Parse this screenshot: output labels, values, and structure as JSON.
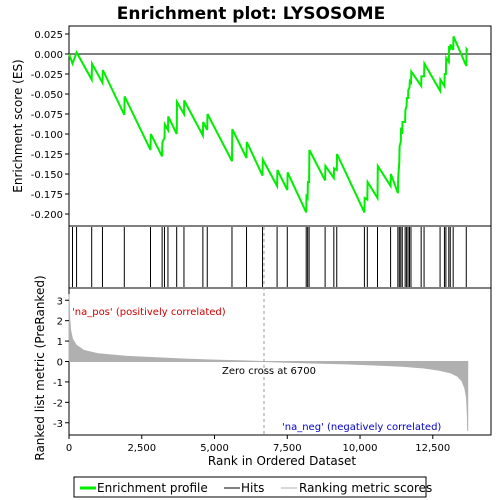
{
  "chart_data": {
    "type": "line",
    "title": "Enrichment plot: LYSOSOME",
    "xlabel": "Rank in Ordered Dataset",
    "ylabel_top": "Enrichment score (ES)",
    "ylabel_bottom": "Ranked list metric (PreRanked)",
    "xlim": [
      0,
      14500
    ],
    "ylim_top": [
      -0.215,
      0.035
    ],
    "ylim_bottom": [
      -3.6,
      3.6
    ],
    "x_ticks": [
      0,
      2500,
      5000,
      7500,
      10000,
      12500
    ],
    "x_tick_labels": [
      "0",
      "2,500",
      "5,000",
      "7,500",
      "10,000",
      "12,500"
    ],
    "y_ticks_top": [
      0.025,
      0.0,
      -0.025,
      -0.05,
      -0.075,
      -0.1,
      -0.125,
      -0.15,
      -0.175,
      -0.2
    ],
    "y_tick_labels_top": [
      "0.025",
      "0.000",
      "-0.025",
      "-0.050",
      "-0.075",
      "-0.100",
      "-0.125",
      "-0.150",
      "-0.175",
      "-0.200"
    ],
    "y_ticks_bottom": [
      3,
      2,
      1,
      0,
      -1,
      -2,
      -3
    ],
    "y_tick_labels_bottom": [
      "3",
      "2",
      "1",
      "0",
      "-1",
      "-2",
      "-3"
    ],
    "annotations": {
      "pos_label": "'na_pos' (positively correlated)",
      "neg_label": "'na_neg' (negatively correlated)",
      "zero_cross": "Zero cross at 6700"
    },
    "zero_cross_rank": 6700,
    "n_genes": 13700,
    "hits": [
      120,
      260,
      780,
      1150,
      1900,
      2800,
      3200,
      3280,
      3400,
      3700,
      3950,
      4600,
      4750,
      5600,
      6100,
      6650,
      7150,
      7500,
      8150,
      8200,
      8250,
      8800,
      9100,
      9200,
      10150,
      10250,
      10600,
      11050,
      11300,
      11350,
      11400,
      11450,
      11550,
      11600,
      11650,
      11700,
      11750,
      12100,
      12200,
      12750,
      12900,
      12950,
      13050,
      13100,
      13200,
      13650
    ],
    "es_curve": [
      [
        0,
        0.0
      ],
      [
        120,
        -0.012
      ],
      [
        260,
        0.002
      ],
      [
        780,
        -0.032
      ],
      [
        790,
        -0.012
      ],
      [
        1150,
        -0.036
      ],
      [
        1160,
        -0.02
      ],
      [
        1900,
        -0.076
      ],
      [
        1910,
        -0.053
      ],
      [
        2800,
        -0.12
      ],
      [
        2810,
        -0.1
      ],
      [
        3200,
        -0.128
      ],
      [
        3210,
        -0.11
      ],
      [
        3280,
        -0.105
      ],
      [
        3290,
        -0.088
      ],
      [
        3400,
        -0.095
      ],
      [
        3410,
        -0.078
      ],
      [
        3700,
        -0.1
      ],
      [
        3710,
        -0.06
      ],
      [
        3950,
        -0.075
      ],
      [
        3960,
        -0.058
      ],
      [
        4600,
        -0.102
      ],
      [
        4610,
        -0.085
      ],
      [
        4750,
        -0.095
      ],
      [
        4760,
        -0.075
      ],
      [
        5600,
        -0.134
      ],
      [
        5610,
        -0.094
      ],
      [
        6100,
        -0.13
      ],
      [
        6110,
        -0.11
      ],
      [
        6650,
        -0.152
      ],
      [
        6660,
        -0.132
      ],
      [
        7150,
        -0.165
      ],
      [
        7160,
        -0.145
      ],
      [
        7500,
        -0.17
      ],
      [
        7510,
        -0.148
      ],
      [
        8150,
        -0.198
      ],
      [
        8160,
        -0.178
      ],
      [
        8200,
        -0.18
      ],
      [
        8210,
        -0.16
      ],
      [
        8250,
        -0.16
      ],
      [
        8260,
        -0.12
      ],
      [
        8800,
        -0.158
      ],
      [
        8810,
        -0.14
      ],
      [
        9100,
        -0.155
      ],
      [
        9110,
        -0.143
      ],
      [
        9200,
        -0.145
      ],
      [
        9210,
        -0.125
      ],
      [
        10150,
        -0.198
      ],
      [
        10160,
        -0.18
      ],
      [
        10250,
        -0.182
      ],
      [
        10260,
        -0.16
      ],
      [
        10600,
        -0.18
      ],
      [
        10610,
        -0.14
      ],
      [
        11050,
        -0.165
      ],
      [
        11060,
        -0.15
      ],
      [
        11300,
        -0.174
      ],
      [
        11310,
        -0.155
      ],
      [
        11350,
        -0.135
      ],
      [
        11360,
        -0.115
      ],
      [
        11400,
        -0.11
      ],
      [
        11410,
        -0.092
      ],
      [
        11450,
        -0.1
      ],
      [
        11460,
        -0.085
      ],
      [
        11550,
        -0.085
      ],
      [
        11560,
        -0.07
      ],
      [
        11600,
        -0.065
      ],
      [
        11610,
        -0.055
      ],
      [
        11650,
        -0.055
      ],
      [
        11660,
        -0.045
      ],
      [
        11700,
        -0.042
      ],
      [
        11710,
        -0.035
      ],
      [
        11750,
        -0.038
      ],
      [
        11760,
        -0.022
      ],
      [
        12100,
        -0.04
      ],
      [
        12110,
        -0.028
      ],
      [
        12200,
        -0.028
      ],
      [
        12210,
        -0.012
      ],
      [
        12750,
        -0.046
      ],
      [
        12760,
        -0.032
      ],
      [
        12900,
        -0.04
      ],
      [
        12910,
        -0.025
      ],
      [
        12950,
        -0.025
      ],
      [
        12960,
        -0.005
      ],
      [
        13050,
        -0.01
      ],
      [
        13060,
        0.01
      ],
      [
        13100,
        0.005
      ],
      [
        13110,
        0.012
      ],
      [
        13200,
        0.005
      ],
      [
        13210,
        0.022
      ],
      [
        13650,
        -0.015
      ],
      [
        13660,
        0.006
      ],
      [
        13700,
        0.004
      ]
    ],
    "metric_curve": [
      [
        0,
        3.3
      ],
      [
        25,
        2.1
      ],
      [
        60,
        1.5
      ],
      [
        120,
        1.1
      ],
      [
        250,
        0.8
      ],
      [
        500,
        0.55
      ],
      [
        1000,
        0.38
      ],
      [
        2000,
        0.25
      ],
      [
        3000,
        0.18
      ],
      [
        4000,
        0.12
      ],
      [
        5000,
        0.07
      ],
      [
        6000,
        0.03
      ],
      [
        6700,
        0.0
      ],
      [
        7500,
        -0.04
      ],
      [
        8500,
        -0.08
      ],
      [
        9500,
        -0.12
      ],
      [
        10500,
        -0.17
      ],
      [
        11500,
        -0.24
      ],
      [
        12200,
        -0.32
      ],
      [
        12700,
        -0.42
      ],
      [
        13100,
        -0.55
      ],
      [
        13350,
        -0.72
      ],
      [
        13500,
        -0.95
      ],
      [
        13600,
        -1.3
      ],
      [
        13660,
        -1.8
      ],
      [
        13690,
        -2.6
      ],
      [
        13700,
        -3.4
      ]
    ],
    "colors": {
      "es_line": "#00ee00",
      "hit": "#000000",
      "metric_fill": "#b0b0b0",
      "zero_line": "#999999",
      "pos_bar": "#ff0000",
      "neg_bar": "#0000ff"
    }
  },
  "legend": {
    "items": [
      {
        "label": "Enrichment profile",
        "icon": "green-line-icon"
      },
      {
        "label": "Hits",
        "icon": "black-line-icon"
      },
      {
        "label": "Ranking metric scores",
        "icon": "gray-line-icon"
      }
    ]
  }
}
